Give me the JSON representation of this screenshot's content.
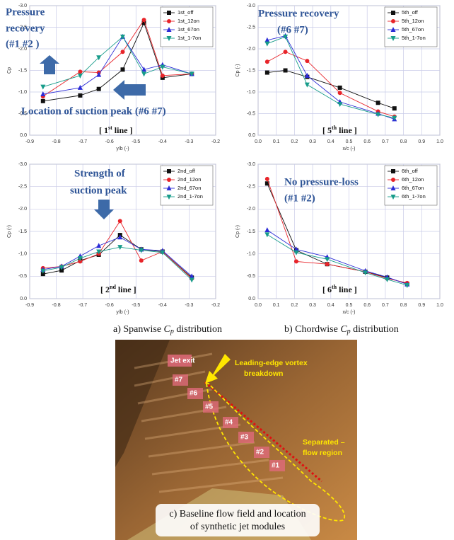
{
  "chart_data": [
    {
      "type": "line",
      "panel_label": [
        "[ 1",
        "st",
        " line ]"
      ],
      "annotations": [
        "Pressure",
        "recovery",
        "(#1 #2 )",
        "Location of suction peak (#6 #7)"
      ],
      "xlabel": "y/b (-)",
      "ylabel": "Cp",
      "x": [
        -0.85,
        -0.71,
        -0.64,
        -0.55,
        -0.47,
        -0.4,
        -0.29
      ],
      "series": [
        {
          "name": "1st_off",
          "color": "#111111",
          "marker": "square",
          "values": [
            -0.79,
            -0.92,
            -1.07,
            -1.52,
            -2.6,
            -1.33,
            -1.42
          ]
        },
        {
          "name": "1st_12on",
          "color": "#e8242a",
          "marker": "circle",
          "values": [
            -0.9,
            -1.47,
            -1.45,
            -1.93,
            -2.67,
            -1.38,
            -1.42
          ]
        },
        {
          "name": "1st_67on",
          "color": "#2b2bd6",
          "marker": "triangle-up",
          "values": [
            -0.95,
            -1.1,
            -1.4,
            -2.28,
            -1.52,
            -1.63,
            -1.42
          ]
        },
        {
          "name": "1st_1-7on",
          "color": "#179c8a",
          "marker": "triangle-down",
          "values": [
            -1.12,
            -1.38,
            -1.8,
            -2.28,
            -1.42,
            -1.58,
            -1.42
          ]
        }
      ],
      "xlim": [
        -0.9,
        -0.2
      ],
      "xticks": [
        -0.9,
        -0.8,
        -0.7,
        -0.6,
        -0.5,
        -0.4,
        -0.3,
        -0.2
      ],
      "ylim": [
        0,
        -3
      ],
      "yticks": [
        {
          "value": 0,
          "label": "0.0"
        },
        -0.5,
        {
          "value": -1,
          "label": "-1.0"
        },
        -1.5,
        {
          "value": -2,
          "label": "-2.0"
        },
        -2.5,
        {
          "value": -3,
          "label": "-3.0"
        }
      ],
      "grid": true,
      "legend": "upper right"
    },
    {
      "type": "line",
      "panel_label": [
        "[ 5",
        "th",
        " line ]"
      ],
      "annotations": [
        "Pressure recovery",
        "(#6 #7)"
      ],
      "xlabel": "x/c (-)",
      "ylabel": "Cp (-)",
      "x": [
        0.05,
        0.15,
        0.27,
        0.45,
        0.66,
        0.75
      ],
      "series": [
        {
          "name": "5th_off",
          "color": "#111111",
          "marker": "square",
          "values": [
            -1.45,
            -1.5,
            -1.35,
            -1.1,
            -0.75,
            -0.62
          ]
        },
        {
          "name": "5th_12on",
          "color": "#e8242a",
          "marker": "circle",
          "values": [
            -1.7,
            -1.93,
            -1.72,
            -0.98,
            -0.55,
            -0.43
          ]
        },
        {
          "name": "5th_67on",
          "color": "#2b2bd6",
          "marker": "triangle-up",
          "values": [
            -2.2,
            -2.3,
            -1.38,
            -0.77,
            -0.5,
            -0.37
          ]
        },
        {
          "name": "5th_1-7on",
          "color": "#179c8a",
          "marker": "triangle-down",
          "values": [
            -2.12,
            -2.28,
            -1.17,
            -0.72,
            -0.48,
            -0.4
          ]
        }
      ],
      "xlim": [
        0,
        1
      ],
      "xticks": [
        {
          "value": 0,
          "label": "0.0"
        },
        0.1,
        0.2,
        0.3,
        0.4,
        0.5,
        0.6,
        0.7,
        0.8,
        0.9,
        {
          "value": 1,
          "label": "1.0"
        }
      ],
      "ylim": [
        0,
        -3
      ],
      "yticks": [
        {
          "value": 0,
          "label": "0.0"
        },
        -0.5,
        {
          "value": -1,
          "label": "-1.0"
        },
        -1.5,
        {
          "value": -2,
          "label": "-2.0"
        },
        -2.5,
        {
          "value": -3,
          "label": "-3.0"
        }
      ],
      "grid": true,
      "legend": "upper right"
    },
    {
      "type": "line",
      "panel_label": [
        "[ 2",
        "nd",
        " line ]"
      ],
      "annotations": [
        "Strength of",
        "suction peak"
      ],
      "xlabel": "y/b (-)",
      "ylabel": "Cp (-)",
      "x": [
        -0.85,
        -0.78,
        -0.71,
        -0.64,
        -0.56,
        -0.48,
        -0.4,
        -0.29
      ],
      "series": [
        {
          "name": "2nd_off",
          "color": "#111111",
          "marker": "square",
          "values": [
            -0.55,
            -0.63,
            -0.85,
            -0.98,
            -1.42,
            -1.1,
            -1.05,
            -0.47
          ]
        },
        {
          "name": "2nd_12on",
          "color": "#e8242a",
          "marker": "circle",
          "values": [
            -0.68,
            -0.72,
            -0.83,
            -1.0,
            -1.73,
            -0.85,
            -1.05,
            -0.45
          ]
        },
        {
          "name": "2nd_67on",
          "color": "#2b2bd6",
          "marker": "triangle-up",
          "values": [
            -0.65,
            -0.72,
            -0.95,
            -1.18,
            -1.37,
            -1.1,
            -1.07,
            -0.5
          ]
        },
        {
          "name": "2nd_1-7on",
          "color": "#179c8a",
          "marker": "triangle-down",
          "values": [
            -0.62,
            -0.7,
            -0.9,
            -1.05,
            -1.15,
            -1.08,
            -1.03,
            -0.42
          ]
        }
      ],
      "xlim": [
        -0.9,
        -0.2
      ],
      "xticks": [
        -0.9,
        -0.8,
        -0.7,
        -0.6,
        -0.5,
        -0.4,
        -0.3,
        -0.2
      ],
      "ylim": [
        0,
        -3
      ],
      "yticks": [
        {
          "value": 0,
          "label": "0.0"
        },
        -0.5,
        {
          "value": -1,
          "label": "-1.0"
        },
        -1.5,
        {
          "value": -2,
          "label": "-2.0"
        },
        -2.5,
        {
          "value": -3,
          "label": "-3.0"
        }
      ],
      "grid": true,
      "legend": "upper right"
    },
    {
      "type": "line",
      "panel_label": [
        "[ 6",
        "th",
        " line ]"
      ],
      "annotations": [
        "No pressure-loss",
        "(#1 #2)"
      ],
      "xlabel": "x/c (-)",
      "ylabel": "Cp (-)",
      "x": [
        0.05,
        0.21,
        0.38,
        0.59,
        0.71,
        0.82
      ],
      "series": [
        {
          "name": "6th_off",
          "color": "#111111",
          "marker": "square",
          "values": [
            -2.57,
            -1.08,
            -0.77,
            -0.6,
            -0.47,
            -0.33
          ]
        },
        {
          "name": "6th_12on",
          "color": "#e8242a",
          "marker": "circle",
          "values": [
            -2.67,
            -0.83,
            -0.77,
            -0.6,
            -0.45,
            -0.35
          ]
        },
        {
          "name": "6th_67on",
          "color": "#2b2bd6",
          "marker": "triangle-up",
          "values": [
            -1.53,
            -1.1,
            -0.93,
            -0.62,
            -0.48,
            -0.32
          ]
        },
        {
          "name": "6th_1-7on",
          "color": "#179c8a",
          "marker": "triangle-down",
          "values": [
            -1.43,
            -1.03,
            -0.88,
            -0.58,
            -0.43,
            -0.3
          ]
        }
      ],
      "xlim": [
        0,
        1
      ],
      "xticks": [
        {
          "value": 0,
          "label": "0.0"
        },
        0.1,
        0.2,
        0.3,
        0.4,
        0.5,
        0.6,
        0.7,
        0.8,
        0.9,
        {
          "value": 1,
          "label": "1.0"
        }
      ],
      "ylim": [
        0,
        -3
      ],
      "yticks": [
        {
          "value": 0,
          "label": "0.0"
        },
        -0.5,
        {
          "value": -1,
          "label": "-1.0"
        },
        -1.5,
        {
          "value": -2,
          "label": "-2.0"
        },
        -2.5,
        {
          "value": -3,
          "label": "-3.0"
        }
      ],
      "grid": true,
      "legend": "upper right"
    }
  ],
  "captions": [
    [
      "a) Spanwise ",
      "C",
      "p",
      " distribution"
    ],
    [
      "b) Chordwise ",
      "C",
      "p",
      " distribution"
    ]
  ],
  "photo": {
    "jet_exit": "Jet exit",
    "modules": [
      "#7",
      "#6",
      "#5",
      "#4",
      "#3",
      "#2",
      "#1"
    ],
    "vortex_label": [
      "Leading-edge vortex",
      "breakdown"
    ],
    "separated_label": [
      "Separated –",
      "flow region"
    ],
    "caption": [
      "c) Baseline flow field and location",
      "of synthetic jet modules"
    ]
  }
}
